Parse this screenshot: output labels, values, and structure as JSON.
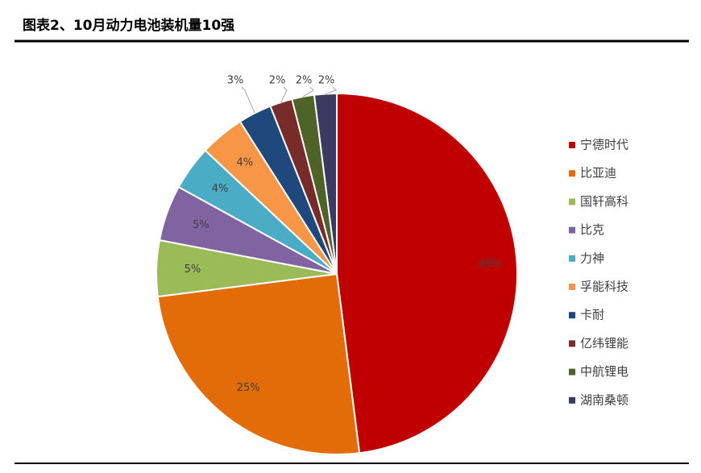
{
  "chart_data": {
    "type": "pie",
    "title": "图表2、10月动力电池装机量10强",
    "categories": [
      "宁德时代",
      "比亚迪",
      "国轩高科",
      "比克",
      "力神",
      "孚能科技",
      "卡耐",
      "亿纬锂能",
      "中航锂电",
      "湖南桑顿"
    ],
    "values": [
      48,
      25,
      5,
      5,
      4,
      4,
      3,
      2,
      2,
      2
    ],
    "value_labels": [
      "48%",
      "25%",
      "5%",
      "5%",
      "4%",
      "4%",
      "3%",
      "2%",
      "2%",
      "2%"
    ],
    "colors": [
      "#c00000",
      "#e36c09",
      "#9bbb59",
      "#8064a2",
      "#4bacc6",
      "#f79646",
      "#1f497d",
      "#772c2a",
      "#4f6228",
      "#3b3a62"
    ],
    "legend": "right"
  }
}
